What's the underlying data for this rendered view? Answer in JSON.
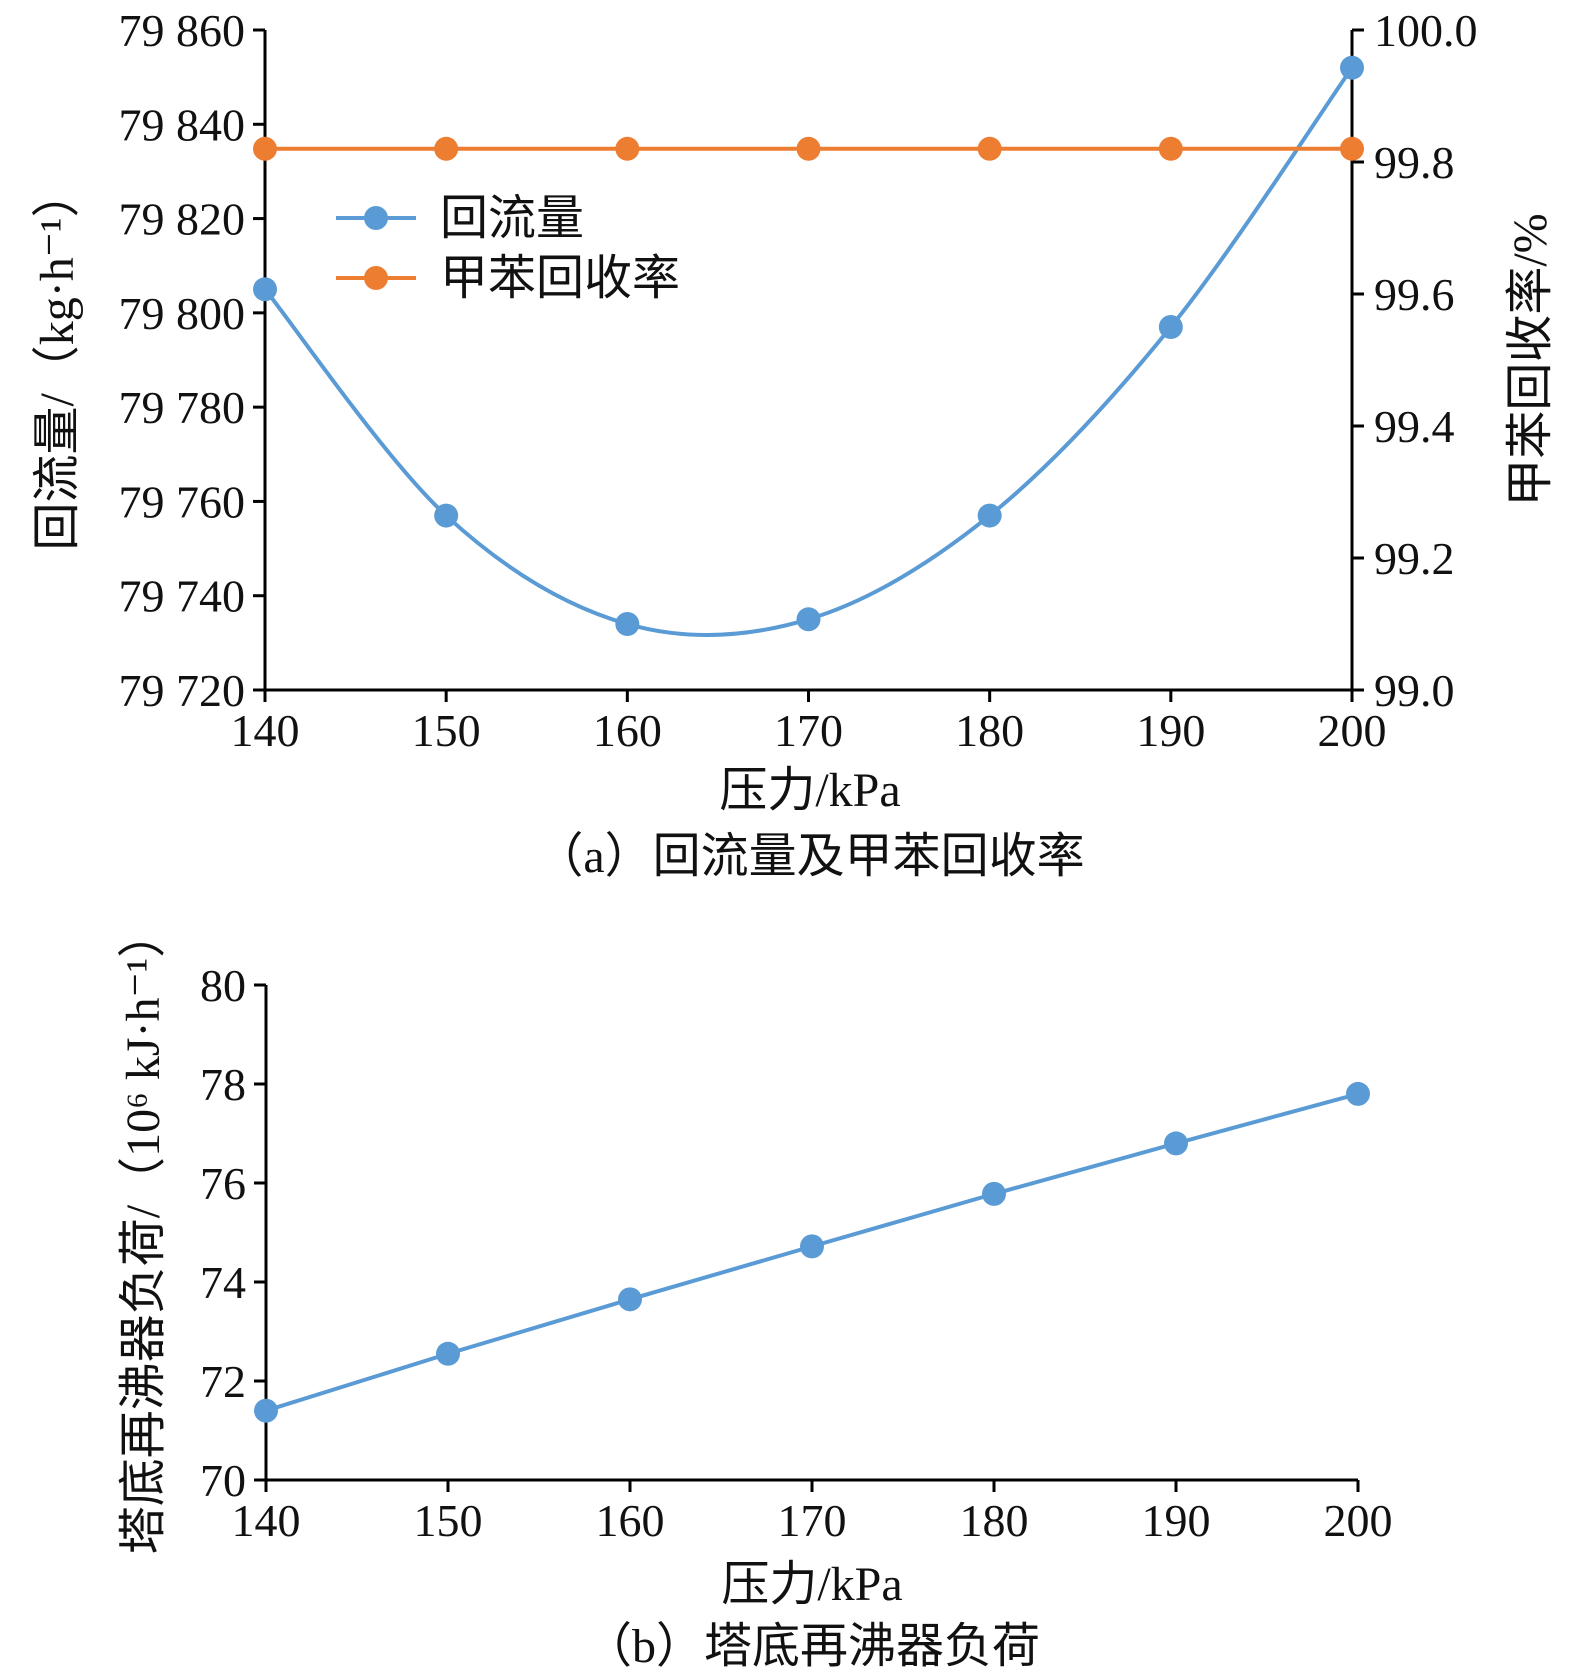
{
  "chart_data": [
    {
      "id": "a",
      "type": "line",
      "caption": "（a）回流量及甲苯回收率",
      "xlabel": "压力/kPa",
      "ylabel": "回流量/（kg·h⁻¹）",
      "y2label": "甲苯回收率/%",
      "x": [
        140,
        150,
        160,
        170,
        180,
        190,
        200
      ],
      "xlim": [
        140,
        200
      ],
      "x_ticks": [
        "140",
        "150",
        "160",
        "170",
        "180",
        "190",
        "200"
      ],
      "ylim": [
        79720,
        79860
      ],
      "y_ticks": [
        "79 720",
        "79 740",
        "79 760",
        "79 780",
        "79 800",
        "79 820",
        "79 840",
        "79 860"
      ],
      "y2lim": [
        99.0,
        100.0
      ],
      "y2_ticks": [
        "99.0",
        "99.2",
        "99.4",
        "99.6",
        "99.8",
        "100.0"
      ],
      "legend_position": "upper-left",
      "grid": false,
      "series": [
        {
          "name": "回流量",
          "axis": "left",
          "color": "#5b9bd5",
          "smooth": true,
          "values": [
            79805,
            79757,
            79734,
            79735,
            79757,
            79797,
            79852
          ]
        },
        {
          "name": "甲苯回收率",
          "axis": "right",
          "color": "#ed7d31",
          "smooth": false,
          "values": [
            99.82,
            99.82,
            99.82,
            99.82,
            99.82,
            99.82,
            99.82
          ]
        }
      ]
    },
    {
      "id": "b",
      "type": "line",
      "caption": "（b）塔底再沸器负荷",
      "xlabel": "压力/kPa",
      "ylabel": "塔底再沸器负荷/（10⁶ kJ·h⁻¹）",
      "x": [
        140,
        150,
        160,
        170,
        180,
        190,
        200
      ],
      "xlim": [
        140,
        200
      ],
      "x_ticks": [
        "140",
        "150",
        "160",
        "170",
        "180",
        "190",
        "200"
      ],
      "ylim": [
        70,
        80
      ],
      "y_ticks": [
        "70",
        "72",
        "74",
        "76",
        "78",
        "80"
      ],
      "grid": false,
      "series": [
        {
          "color": "#5b9bd5",
          "smooth": false,
          "values": [
            71.4,
            72.55,
            73.65,
            74.72,
            75.78,
            76.8,
            77.8
          ]
        }
      ]
    }
  ]
}
